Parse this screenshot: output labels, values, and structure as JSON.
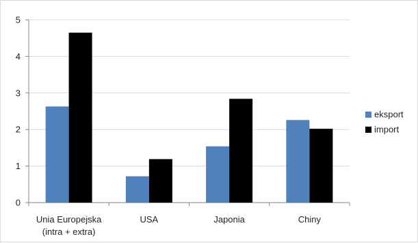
{
  "chart_data": {
    "type": "bar",
    "title": "",
    "xlabel": "",
    "ylabel": "",
    "ylim": [
      0,
      5
    ],
    "yticks": [
      0,
      1,
      2,
      3,
      4,
      5
    ],
    "grid": true,
    "legend_position": "right",
    "categories": [
      [
        "Unia Europejska",
        "(intra + extra)"
      ],
      [
        "USA"
      ],
      [
        "Japonia"
      ],
      [
        "Chiny"
      ]
    ],
    "series": [
      {
        "name": "eksport",
        "color": "#4f81bd",
        "values": [
          2.63,
          0.72,
          1.54,
          2.26
        ]
      },
      {
        "name": "import",
        "color": "#000000",
        "values": [
          4.65,
          1.19,
          2.84,
          2.02
        ]
      }
    ]
  }
}
